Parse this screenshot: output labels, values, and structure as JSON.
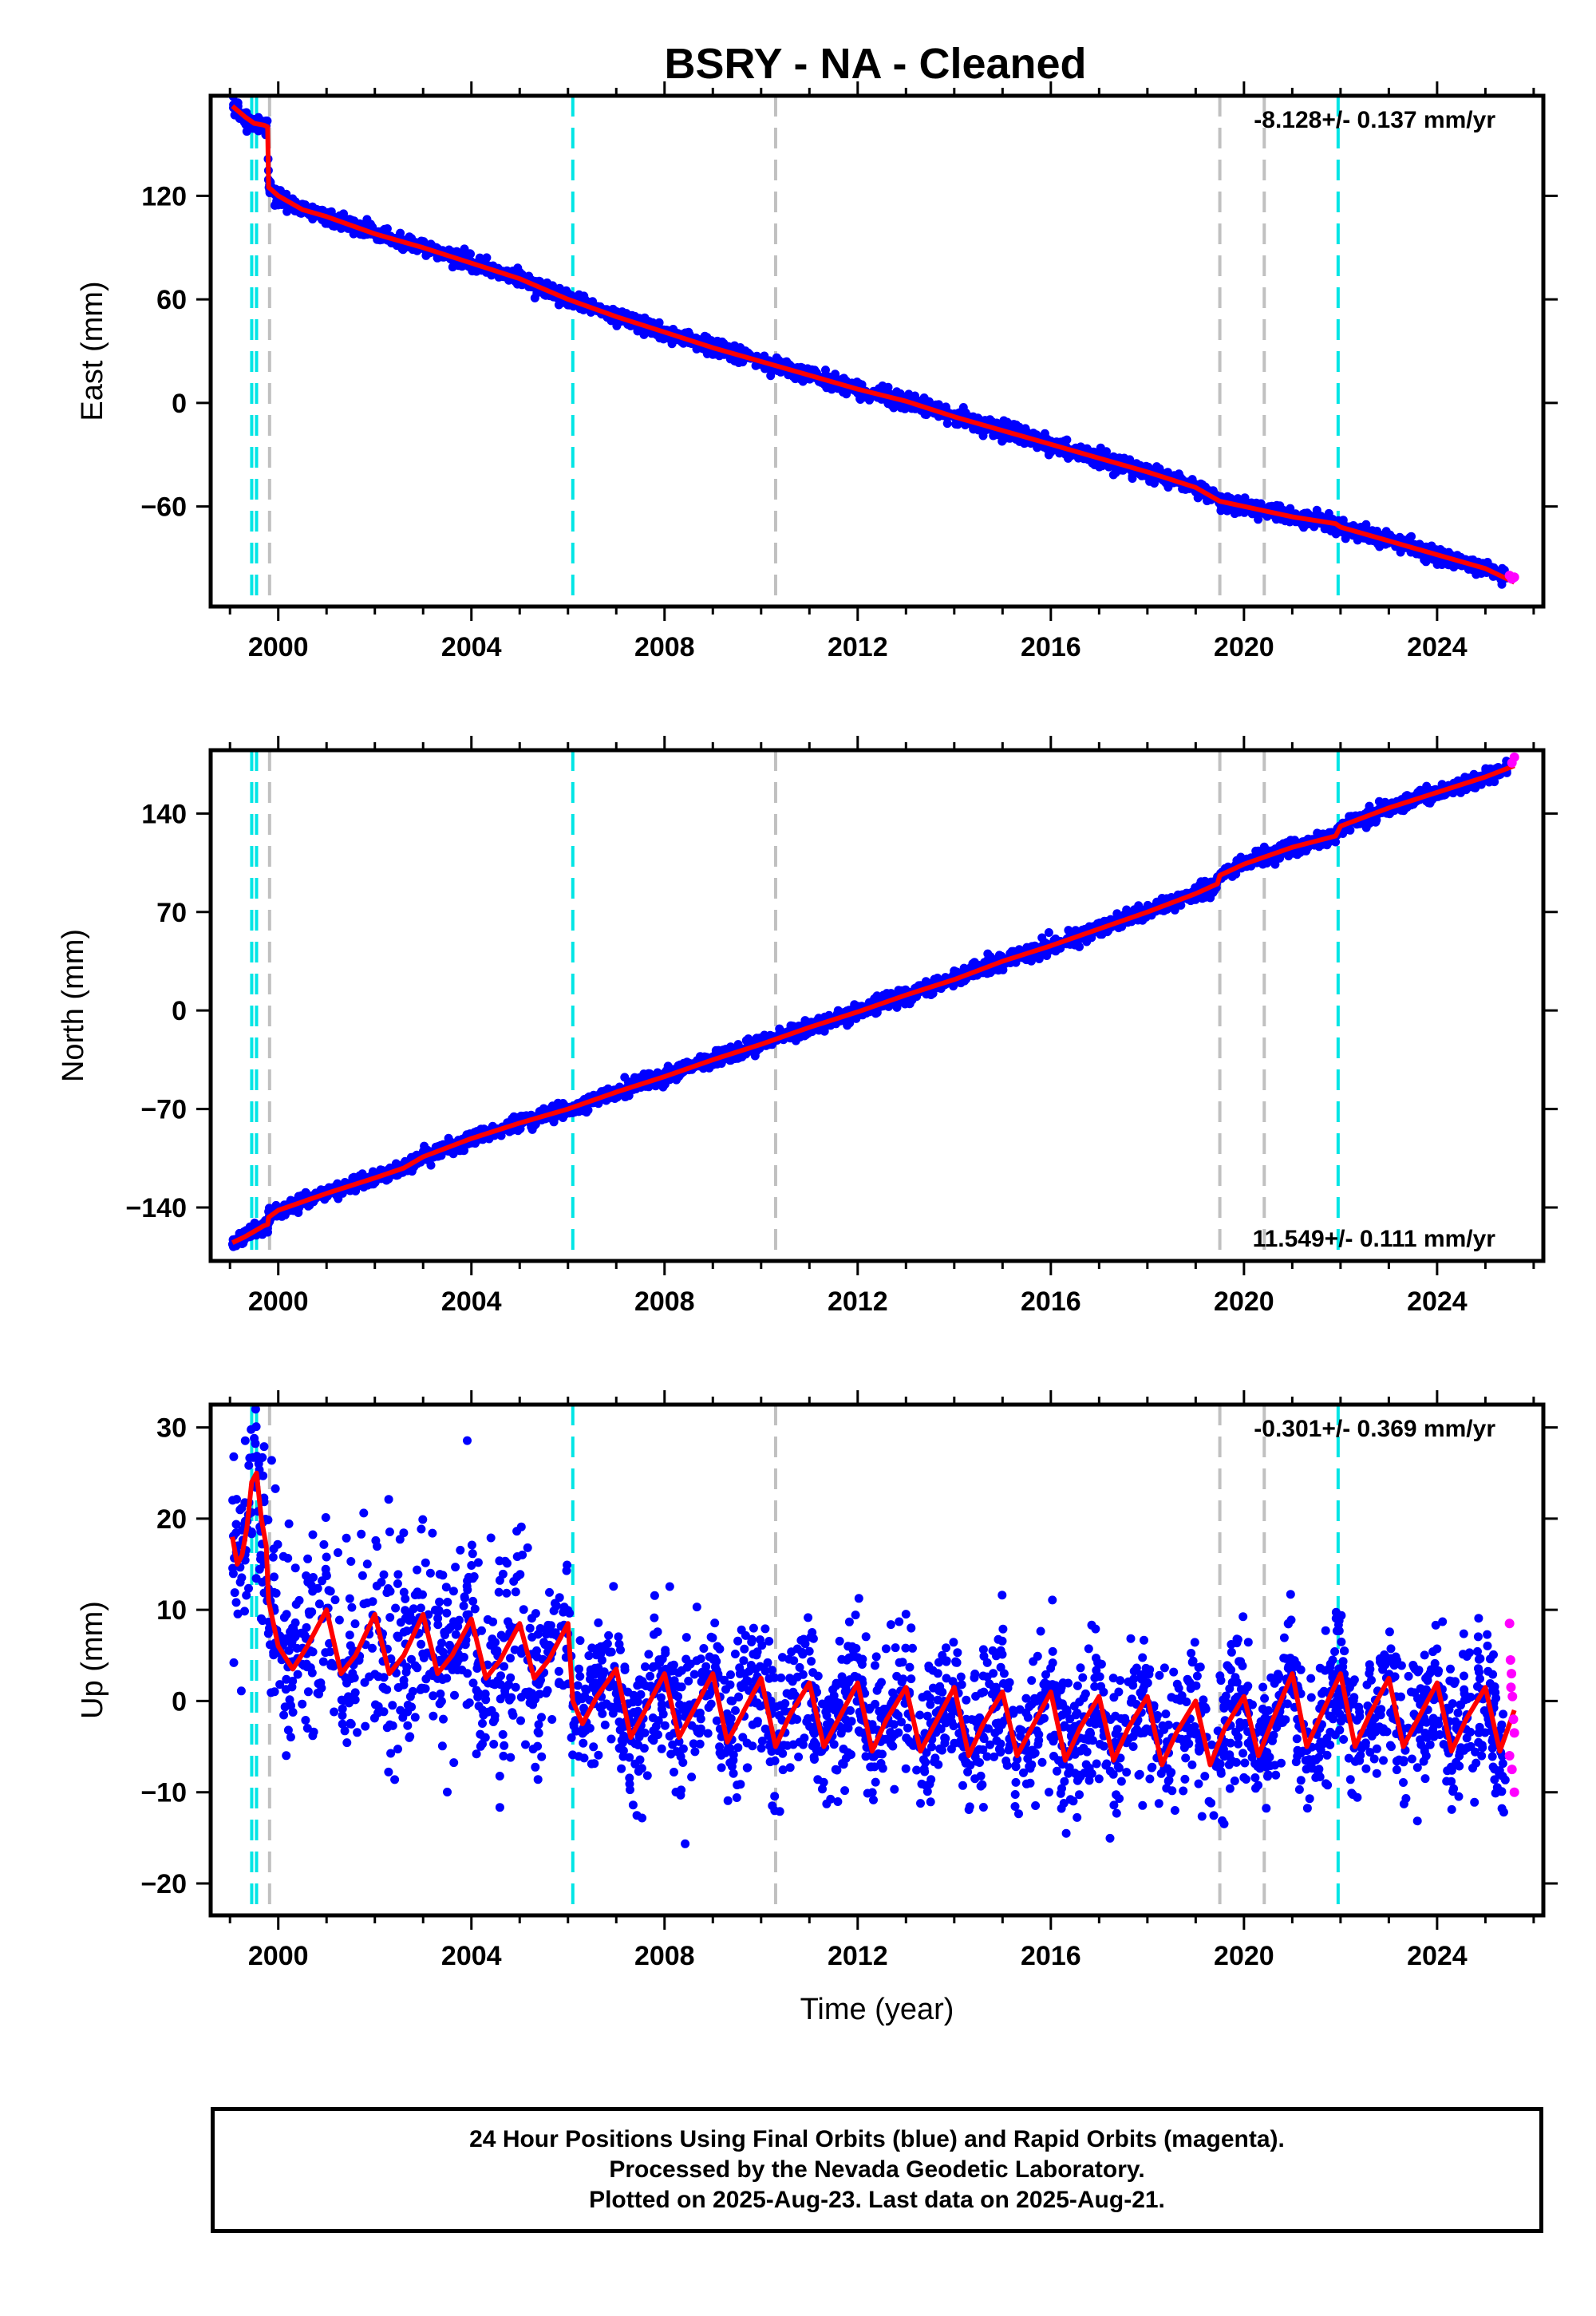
{
  "title": "BSRY  - NA - Cleaned",
  "colors": {
    "final_points": "#0000ff",
    "rapid_points": "#ff00ff",
    "model_line": "#ff0000",
    "equipment_change_line": "#00e5e5",
    "other_event_line": "#c0c0c0"
  },
  "chart_data": [
    {
      "type": "scatter",
      "component": "East",
      "ylabel": "East (mm)",
      "xlim": [
        1998.6,
        2026.2
      ],
      "ylim": [
        -118,
        178
      ],
      "x_ticks": [
        2000,
        2004,
        2008,
        2012,
        2016,
        2020,
        2024
      ],
      "y_ticks": [
        120,
        60,
        0,
        -60
      ],
      "rate_text": "-8.128+/- 0.137 mm/yr",
      "rate_position": "top-right",
      "model_line": {
        "x": [
          1999.05,
          1999.3,
          1999.5,
          1999.7,
          1999.78,
          1999.8,
          2000.0,
          2000.5,
          2001.0,
          2002.0,
          2003.0,
          2004.0,
          2005.0,
          2006.0,
          2007.0,
          2008.0,
          2009.0,
          2010.0,
          2011.0,
          2012.0,
          2013.0,
          2014.0,
          2015.0,
          2016.0,
          2017.0,
          2018.0,
          2019.0,
          2019.5,
          2020.0,
          2021.0,
          2021.9,
          2022.0,
          2023.0,
          2024.0,
          2025.0,
          2025.6
        ],
        "y": [
          172,
          166,
          162,
          161,
          160,
          125,
          120,
          112,
          108,
          98,
          90,
          81,
          72,
          60,
          50,
          41,
          32,
          24,
          16,
          8,
          1,
          -8,
          -16,
          -24,
          -32,
          -40,
          -49,
          -57,
          -60,
          -66,
          -70,
          -72,
          -80,
          -88,
          -96,
          -104
        ]
      },
      "rapid_points": {
        "x": [
          2025.5,
          2025.55,
          2025.6
        ],
        "y": [
          -100,
          -102,
          -101
        ]
      },
      "final_scatter_sd": 2.2
    },
    {
      "type": "scatter",
      "component": "North",
      "ylabel": "North (mm)",
      "xlim": [
        1998.6,
        2026.2
      ],
      "ylim": [
        -178,
        185
      ],
      "x_ticks": [
        2000,
        2004,
        2008,
        2012,
        2016,
        2020,
        2024
      ],
      "y_ticks": [
        140,
        70,
        0,
        -70,
        -140
      ],
      "rate_text": "11.549+/- 0.111 mm/yr",
      "rate_position": "bottom-right",
      "model_line": {
        "x": [
          1999.05,
          1999.3,
          1999.5,
          1999.7,
          1999.78,
          1999.8,
          2000.0,
          2001.0,
          2002.0,
          2002.6,
          2003.0,
          2004.0,
          2005.0,
          2006.0,
          2007.0,
          2008.0,
          2009.0,
          2010.0,
          2011.0,
          2012.0,
          2013.0,
          2014.0,
          2015.0,
          2016.0,
          2017.0,
          2018.0,
          2019.0,
          2019.45,
          2019.5,
          2020.0,
          2021.0,
          2021.9,
          2022.0,
          2023.0,
          2024.0,
          2025.0,
          2025.6
        ],
        "y": [
          -165,
          -161,
          -157,
          -153,
          -152,
          -147,
          -142,
          -130,
          -119,
          -112,
          -104,
          -91,
          -80,
          -70,
          -58,
          -47,
          -35,
          -24,
          -12,
          -1,
          11,
          22,
          35,
          46,
          58,
          70,
          83,
          90,
          96,
          104,
          116,
          124,
          131,
          144,
          155,
          166,
          174
        ]
      },
      "rapid_points": {
        "x": [
          2025.55,
          2025.6
        ],
        "y": [
          176,
          180
        ]
      },
      "final_scatter_sd": 2.6
    },
    {
      "type": "scatter",
      "component": "Up",
      "ylabel": "Up (mm)",
      "xlabel": "Time (year)",
      "xlim": [
        1998.6,
        2026.2
      ],
      "ylim": [
        -23.5,
        32.5
      ],
      "x_ticks": [
        2000,
        2004,
        2008,
        2012,
        2016,
        2020,
        2024
      ],
      "y_ticks": [
        30,
        20,
        10,
        0,
        -10,
        -20
      ],
      "rate_text": "-0.301+/- 0.369 mm/yr",
      "rate_position": "top-right",
      "model_line": {
        "x": [
          1999.05,
          1999.15,
          1999.25,
          1999.35,
          1999.45,
          1999.55,
          1999.65,
          1999.75,
          1999.8,
          2000.0,
          2000.3,
          2000.6,
          2001.0,
          2001.3,
          2001.6,
          2002.0,
          2002.3,
          2002.6,
          2003.0,
          2003.3,
          2003.6,
          2004.0,
          2004.3,
          2004.6,
          2005.0,
          2005.3,
          2005.6,
          2006.0,
          2006.1,
          2006.3,
          2006.6,
          2007.0,
          2007.3,
          2007.6,
          2008.0,
          2008.3,
          2008.6,
          2009.0,
          2009.3,
          2009.6,
          2010.0,
          2010.3,
          2010.6,
          2011.0,
          2011.3,
          2011.6,
          2012.0,
          2012.3,
          2012.6,
          2013.0,
          2013.3,
          2013.6,
          2014.0,
          2014.3,
          2014.6,
          2015.0,
          2015.3,
          2015.6,
          2016.0,
          2016.3,
          2016.6,
          2017.0,
          2017.3,
          2017.6,
          2018.0,
          2018.3,
          2018.6,
          2019.0,
          2019.3,
          2019.6,
          2020.0,
          2020.3,
          2020.6,
          2021.0,
          2021.3,
          2021.6,
          2022.0,
          2022.3,
          2022.6,
          2023.0,
          2023.3,
          2023.6,
          2024.0,
          2024.3,
          2024.6,
          2025.0,
          2025.3,
          2025.6
        ],
        "y": [
          18,
          15,
          16,
          19,
          24,
          25,
          20,
          17,
          11,
          6,
          3.5,
          6,
          10,
          3,
          5,
          9.5,
          3,
          5,
          9.5,
          3,
          5,
          9,
          2.5,
          4.5,
          8.5,
          2.5,
          4.5,
          8.5,
          0,
          -2.5,
          0.5,
          3.5,
          -4,
          -1,
          3,
          -4,
          -1,
          3,
          -4.5,
          -1.5,
          2.5,
          -5,
          -1.5,
          2,
          -5,
          -2,
          2,
          -5.5,
          -2,
          1.5,
          -5.5,
          -2.5,
          1.5,
          -6,
          -2.5,
          1,
          -6,
          -3,
          1,
          -6.5,
          -3,
          0.5,
          -6.5,
          -3,
          0.5,
          -7,
          -3.5,
          0,
          -7,
          -3,
          0.5,
          -6,
          -2,
          3,
          -5,
          -1.5,
          3,
          -5,
          -1.5,
          2.5,
          -5,
          -2,
          2,
          -5.5,
          -2,
          1.5,
          -5.5,
          -1
        ]
      },
      "rapid_points": {
        "x": [
          2025.5,
          2025.52,
          2025.54,
          2025.56,
          2025.58,
          2025.6,
          2025.5,
          2025.55,
          2025.6,
          2025.53
        ],
        "y": [
          8.5,
          4.5,
          3,
          0.5,
          -2,
          -3.5,
          -6,
          -7.5,
          -10,
          1.5
        ]
      },
      "final_scatter_sd": 3.8
    }
  ],
  "event_lines": {
    "equipment_change_x": [
      1999.45,
      1999.55,
      2006.1,
      2021.95
    ],
    "other_event_x": [
      1999.82,
      2010.3,
      2019.5,
      2020.42
    ]
  },
  "footer": {
    "line1": "24 Hour Positions Using Final Orbits (blue) and Rapid Orbits (magenta).",
    "line2": "Processed by the Nevada Geodetic Laboratory.",
    "line3": "Plotted on 2025-Aug-23. Last data on 2025-Aug-21."
  }
}
